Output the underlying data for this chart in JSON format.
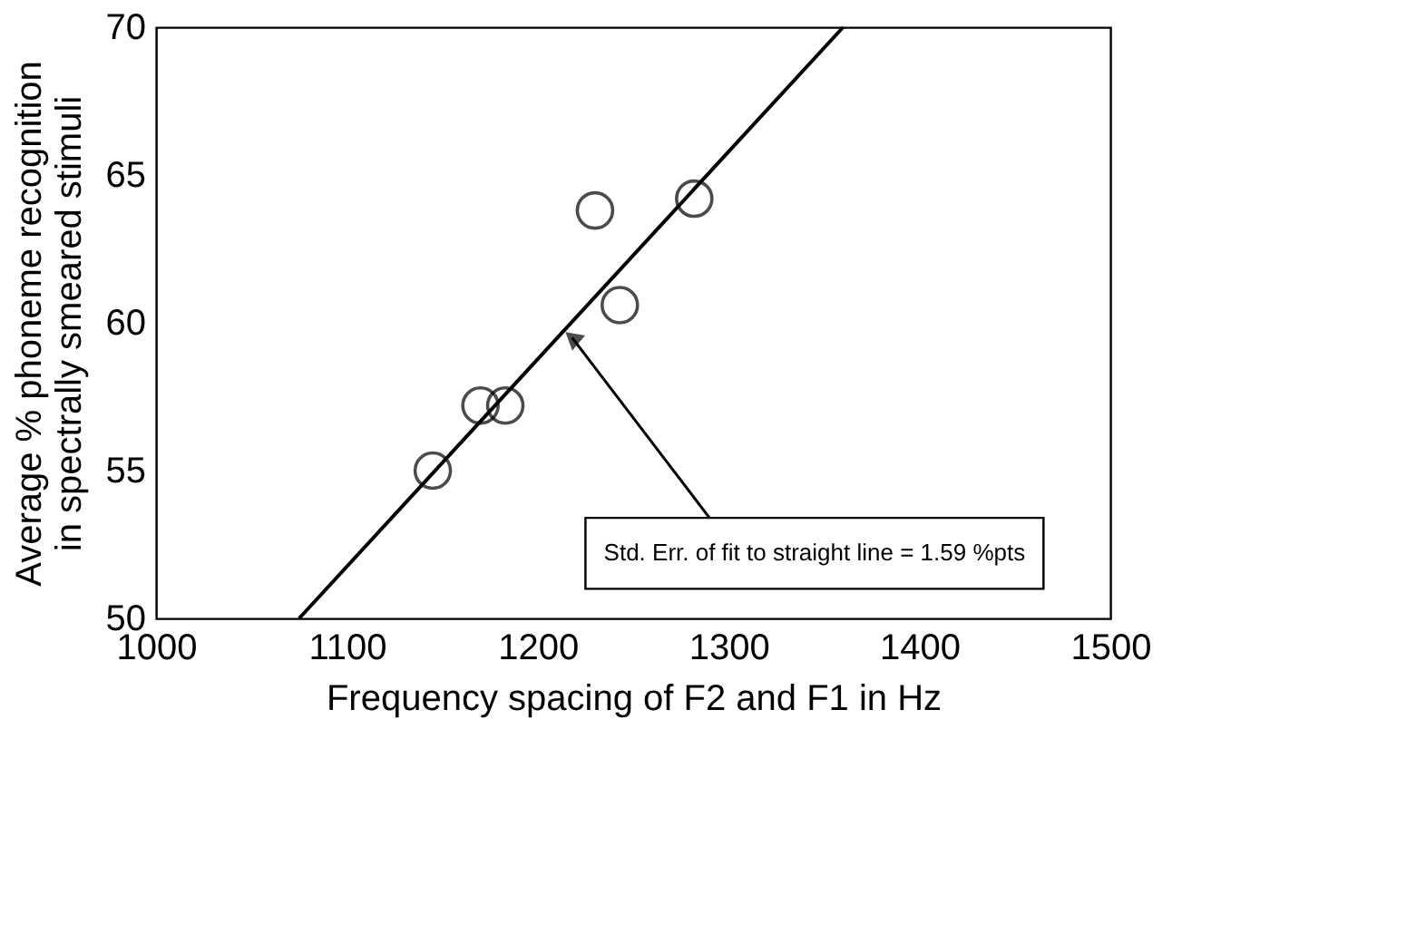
{
  "chart_data": {
    "type": "scatter",
    "xlabel": "Frequency spacing of F2 and F1 in Hz",
    "ylabel": "Average % phoneme recognition\nin spectrally smeared stimuli",
    "series": [
      {
        "color": "#000000",
        "marker": "circle",
        "x": [
          1145,
          1170,
          1183,
          1230,
          1243,
          1282
        ],
        "values": [
          55.0,
          57.2,
          57.2,
          63.8,
          60.6,
          64.2
        ]
      },
      {
        "type": "line",
        "color": "#000000",
        "line_style": "solid",
        "x": [
          1075,
          1360
        ],
        "values": [
          50,
          70
        ]
      }
    ],
    "annotations": [
      {
        "text": "Std. Err. of fit to straight line = 1.59 %pts",
        "x": 1218,
        "y": 59.5
      }
    ],
    "xlim": [
      1000,
      1500
    ],
    "xticks": [
      1000,
      1100,
      1200,
      1300,
      1400,
      1500
    ],
    "ylim": [
      50,
      70
    ],
    "yticks": [
      50,
      55,
      60,
      65,
      70
    ],
    "grid": false,
    "legend": false
  }
}
